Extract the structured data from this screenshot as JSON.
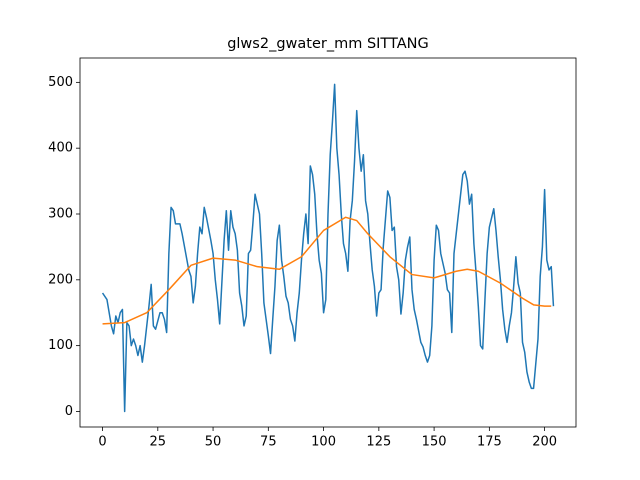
{
  "chart_data": {
    "type": "line",
    "title": "glws2_gwater_mm SITTANG",
    "xlim": [
      -10.2,
      214.2
    ],
    "ylim": [
      -23.6,
      537
    ],
    "xticks": [
      0,
      25,
      50,
      75,
      100,
      125,
      150,
      175,
      200
    ],
    "yticks": [
      0,
      100,
      200,
      300,
      400,
      500
    ],
    "grid": false,
    "series": [
      {
        "color": "#1f77b4",
        "x": [
          0,
          2,
          4,
          5,
          6,
          7,
          8,
          9,
          10,
          11,
          12,
          13,
          14,
          15,
          16,
          17,
          18,
          19,
          21,
          22,
          23,
          24,
          26,
          27,
          28,
          29,
          30,
          31,
          32,
          33,
          35,
          36,
          39,
          40,
          41,
          42,
          43,
          44,
          45,
          46,
          47,
          49,
          50,
          51,
          52,
          53,
          55,
          56,
          57,
          58,
          59,
          60,
          61,
          62,
          63,
          64,
          65,
          66,
          67,
          68,
          69,
          70,
          71,
          72,
          73,
          74,
          75,
          76,
          77,
          78,
          79,
          80,
          81,
          82,
          83,
          84,
          85,
          86,
          87,
          88,
          89,
          90,
          91,
          92,
          93,
          94,
          95,
          96,
          97,
          98,
          99,
          100,
          101,
          102,
          103,
          104,
          105,
          106,
          107,
          108,
          109,
          110,
          111,
          112,
          113,
          114,
          115,
          116,
          117,
          118,
          119,
          120,
          121,
          122,
          123,
          124,
          125,
          126,
          127,
          129,
          130,
          131,
          132,
          133,
          134,
          135,
          136,
          137,
          138,
          139,
          140,
          141,
          142,
          144,
          145,
          146,
          147,
          148,
          149,
          150,
          151,
          152,
          153,
          154,
          155,
          156,
          157,
          158,
          159,
          160,
          163,
          164,
          165,
          166,
          167,
          168,
          169,
          170,
          171,
          172,
          173,
          174,
          175,
          177,
          178,
          179,
          180,
          181,
          182,
          183,
          184,
          185,
          186,
          187,
          188,
          189,
          190,
          191,
          192,
          193,
          194,
          195,
          197,
          198,
          199,
          200,
          201,
          202,
          203,
          204
        ],
        "values": [
          180,
          170,
          130,
          118,
          145,
          135,
          150,
          155,
          0,
          135,
          130,
          100,
          110,
          100,
          85,
          100,
          75,
          100,
          160,
          193,
          130,
          125,
          150,
          150,
          140,
          120,
          240,
          310,
          305,
          285,
          285,
          270,
          215,
          205,
          165,
          190,
          240,
          280,
          270,
          310,
          295,
          260,
          240,
          200,
          170,
          133,
          260,
          305,
          245,
          305,
          280,
          270,
          245,
          180,
          160,
          130,
          145,
          240,
          245,
          285,
          330,
          315,
          300,
          240,
          165,
          140,
          115,
          88,
          140,
          190,
          260,
          283,
          230,
          205,
          175,
          165,
          140,
          130,
          107,
          150,
          180,
          230,
          270,
          300,
          255,
          373,
          360,
          330,
          270,
          230,
          210,
          150,
          170,
          300,
          390,
          440,
          497,
          400,
          360,
          300,
          255,
          240,
          213,
          290,
          320,
          380,
          457,
          400,
          365,
          390,
          320,
          300,
          255,
          215,
          190,
          145,
          180,
          185,
          250,
          335,
          325,
          275,
          280,
          220,
          200,
          148,
          180,
          230,
          250,
          265,
          185,
          155,
          140,
          105,
          98,
          85,
          75,
          85,
          130,
          230,
          283,
          275,
          240,
          225,
          210,
          185,
          180,
          120,
          240,
          270,
          360,
          365,
          350,
          315,
          330,
          255,
          210,
          160,
          100,
          95,
          170,
          240,
          280,
          308,
          275,
          235,
          200,
          155,
          125,
          105,
          130,
          150,
          190,
          235,
          195,
          180,
          105,
          90,
          60,
          45,
          35,
          35,
          110,
          205,
          250,
          337,
          230,
          215,
          220,
          160
        ]
      },
      {
        "color": "#ff7f0e",
        "x": [
          0,
          10,
          20,
          30,
          40,
          50,
          60,
          70,
          80,
          90,
          100,
          110,
          115,
          120,
          130,
          140,
          150,
          160,
          165,
          170,
          180,
          190,
          195,
          200,
          203
        ],
        "values": [
          133,
          135,
          150,
          185,
          222,
          233,
          230,
          220,
          216,
          235,
          275,
          295,
          290,
          270,
          235,
          208,
          203,
          213,
          216,
          213,
          195,
          172,
          162,
          160,
          160
        ]
      }
    ]
  }
}
